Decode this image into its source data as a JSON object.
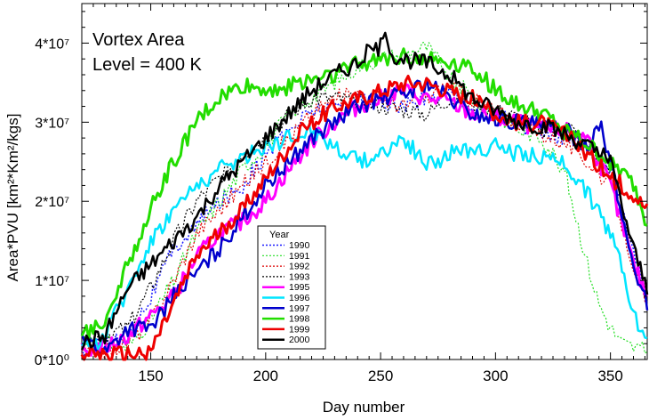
{
  "chart_data": {
    "type": "line",
    "title": "Vortex Area",
    "subtitle": "Level = 400 K",
    "xlabel": "Day number",
    "ylabel": "Area*PVU [km²*Km²/kgs]",
    "xlim": [
      120,
      366
    ],
    "ylim": [
      0,
      45000000
    ],
    "x_ticks": [
      150,
      200,
      250,
      300,
      350
    ],
    "y_ticks": [
      {
        "value": 0,
        "label": "0*10⁰"
      },
      {
        "value": 10000000,
        "label": "1*10⁷"
      },
      {
        "value": 20000000,
        "label": "2*10⁷"
      },
      {
        "value": 30000000,
        "label": "3*10⁷"
      },
      {
        "value": 40000000,
        "label": "4*10⁷"
      }
    ],
    "grid": false,
    "legend": {
      "title": "Year",
      "placement": "center-left"
    },
    "series": [
      {
        "name": "1990",
        "color": "#1a1aff",
        "dash": "dotted",
        "width": 1.5,
        "x": [
          120,
          130,
          140,
          150,
          160,
          170,
          180,
          190,
          200,
          210,
          220,
          230,
          240,
          250,
          260,
          270,
          280,
          290,
          300,
          310,
          320,
          330,
          340,
          350,
          360,
          366
        ],
        "y": [
          1000000,
          2000000,
          3000000,
          8000000,
          14000000,
          17000000,
          20000000,
          22000000,
          26000000,
          29000000,
          31500000,
          32000000,
          33000000,
          32500000,
          32000000,
          33000000,
          34000000,
          32000000,
          31000000,
          29500000,
          29000000,
          28000000,
          26500000,
          24500000,
          14000000,
          8000000
        ]
      },
      {
        "name": "1991",
        "color": "#22dd22",
        "dash": "dotted",
        "width": 1.2,
        "x": [
          120,
          130,
          140,
          150,
          160,
          170,
          180,
          190,
          200,
          210,
          220,
          230,
          240,
          250,
          260,
          270,
          280,
          290,
          300,
          310,
          320,
          330,
          335,
          340,
          345,
          350,
          355,
          360,
          366
        ],
        "y": [
          3000000,
          2000000,
          1500000,
          5000000,
          10000000,
          16000000,
          20000000,
          24000000,
          27000000,
          31000000,
          33000000,
          35000000,
          37000000,
          38000000,
          38500000,
          39500000,
          36000000,
          33000000,
          31000000,
          29000000,
          28000000,
          24000000,
          18000000,
          12000000,
          7000000,
          4000000,
          2000000,
          1500000,
          1000000
        ]
      },
      {
        "name": "1992",
        "color": "#dd0000",
        "dash": "dotted",
        "width": 1.2,
        "x": [
          120,
          130,
          140,
          150,
          160,
          170,
          180,
          190,
          200,
          210,
          220,
          230,
          240,
          250,
          260,
          270,
          280,
          290,
          300,
          310,
          320,
          330,
          340,
          350,
          360,
          366
        ],
        "y": [
          1000000,
          1000000,
          2000000,
          5000000,
          10000000,
          16000000,
          19000000,
          22000000,
          25000000,
          28000000,
          31000000,
          33000000,
          33500000,
          33000000,
          32000000,
          33000000,
          35000000,
          33000000,
          31500000,
          30000000,
          28500000,
          27500000,
          25000000,
          22000000,
          12000000,
          6000000
        ]
      },
      {
        "name": "1993",
        "color": "#000000",
        "dash": "dotted",
        "width": 1.2,
        "x": [
          120,
          130,
          140,
          150,
          160,
          170,
          180,
          190,
          200,
          210,
          220,
          230,
          240,
          250,
          260,
          270,
          280,
          290,
          300,
          310,
          320,
          330,
          340,
          350,
          360,
          366
        ],
        "y": [
          2000000,
          3000000,
          4000000,
          9000000,
          15000000,
          20000000,
          23000000,
          26000000,
          28000000,
          31000000,
          33000000,
          33000000,
          32500000,
          32000000,
          31500000,
          31000000,
          33000000,
          32000000,
          31500000,
          30500000,
          29000000,
          30000000,
          27000000,
          23000000,
          14000000,
          7000000
        ]
      },
      {
        "name": "1995",
        "color": "#ff00ff",
        "dash": "solid",
        "width": 3,
        "x": [
          120,
          130,
          140,
          150,
          160,
          170,
          180,
          190,
          200,
          210,
          220,
          230,
          240,
          250,
          260,
          270,
          280,
          290,
          300,
          310,
          320,
          330,
          340,
          350,
          355,
          360,
          366
        ],
        "y": [
          1000000,
          1500000,
          3000000,
          5500000,
          8000000,
          13000000,
          16000000,
          17500000,
          20000000,
          24000000,
          27500000,
          30000000,
          32000000,
          33000000,
          34000000,
          33000000,
          32500000,
          31000000,
          30500000,
          30000000,
          29000000,
          29000000,
          28000000,
          22000000,
          17000000,
          12000000,
          8000000
        ]
      },
      {
        "name": "1996",
        "color": "#00e5ff",
        "dash": "solid",
        "width": 2.5,
        "x": [
          120,
          130,
          140,
          150,
          160,
          170,
          180,
          190,
          200,
          210,
          220,
          230,
          240,
          250,
          260,
          270,
          280,
          290,
          300,
          310,
          320,
          330,
          340,
          350,
          355,
          360,
          366
        ],
        "y": [
          1000000,
          3000000,
          9000000,
          15000000,
          19000000,
          22000000,
          24000000,
          25500000,
          27000000,
          28000000,
          29000000,
          27000000,
          25000000,
          26000000,
          28000000,
          24500000,
          26000000,
          26500000,
          27000000,
          26000000,
          25500000,
          25000000,
          21000000,
          16000000,
          12000000,
          6000000,
          2000000
        ]
      },
      {
        "name": "1997",
        "color": "#0000cc",
        "dash": "solid",
        "width": 2.5,
        "x": [
          120,
          130,
          140,
          150,
          160,
          170,
          180,
          190,
          200,
          210,
          220,
          230,
          240,
          250,
          260,
          270,
          280,
          290,
          300,
          310,
          320,
          330,
          340,
          345,
          350,
          355,
          360,
          366
        ],
        "y": [
          3000000,
          1000000,
          4000000,
          4000000,
          8000000,
          11000000,
          14000000,
          18000000,
          22000000,
          25000000,
          28000000,
          30000000,
          32000000,
          33000000,
          33500000,
          35000000,
          33000000,
          31000000,
          30500000,
          30000000,
          29500000,
          29000000,
          27000000,
          30000000,
          25000000,
          18000000,
          12000000,
          7000000
        ]
      },
      {
        "name": "1998",
        "color": "#22dd00",
        "dash": "solid",
        "width": 3,
        "x": [
          120,
          130,
          140,
          150,
          160,
          170,
          180,
          190,
          200,
          210,
          220,
          230,
          240,
          250,
          260,
          270,
          280,
          290,
          300,
          310,
          320,
          330,
          340,
          350,
          360,
          366
        ],
        "y": [
          3000000,
          5000000,
          12000000,
          19000000,
          25000000,
          30000000,
          33000000,
          34500000,
          34000000,
          34500000,
          35500000,
          36000000,
          37500000,
          38000000,
          38500000,
          38000000,
          37500000,
          37000000,
          34000000,
          32000000,
          31000000,
          29000000,
          27000000,
          25000000,
          22000000,
          17000000
        ]
      },
      {
        "name": "1999",
        "color": "#ee0000",
        "dash": "solid",
        "width": 3,
        "x": [
          120,
          130,
          140,
          150,
          160,
          170,
          180,
          190,
          200,
          210,
          220,
          230,
          240,
          250,
          260,
          270,
          280,
          290,
          300,
          310,
          320,
          330,
          340,
          350,
          360,
          366
        ],
        "y": [
          1000000,
          500000,
          500000,
          1000000,
          7000000,
          13000000,
          16000000,
          19000000,
          23000000,
          27000000,
          30000000,
          32000000,
          33000000,
          34000000,
          35000000,
          35000000,
          34000000,
          33000000,
          31000000,
          30000000,
          30000000,
          28500000,
          26000000,
          23000000,
          21000000,
          19000000
        ]
      },
      {
        "name": "2000",
        "color": "#000000",
        "dash": "solid",
        "width": 2.5,
        "x": [
          120,
          130,
          140,
          150,
          160,
          170,
          180,
          190,
          200,
          210,
          220,
          230,
          240,
          245,
          250,
          253,
          255,
          260,
          270,
          280,
          290,
          300,
          310,
          320,
          330,
          340,
          350,
          360,
          366
        ],
        "y": [
          2000000,
          3000000,
          9000000,
          12000000,
          15000000,
          18000000,
          22000000,
          25000000,
          28000000,
          31000000,
          34000000,
          36000000,
          37500000,
          39000000,
          39500000,
          41000000,
          38500000,
          38000000,
          37500000,
          36000000,
          33000000,
          31500000,
          30000000,
          29500000,
          28500000,
          27000000,
          25000000,
          14000000,
          9000000
        ]
      }
    ]
  }
}
